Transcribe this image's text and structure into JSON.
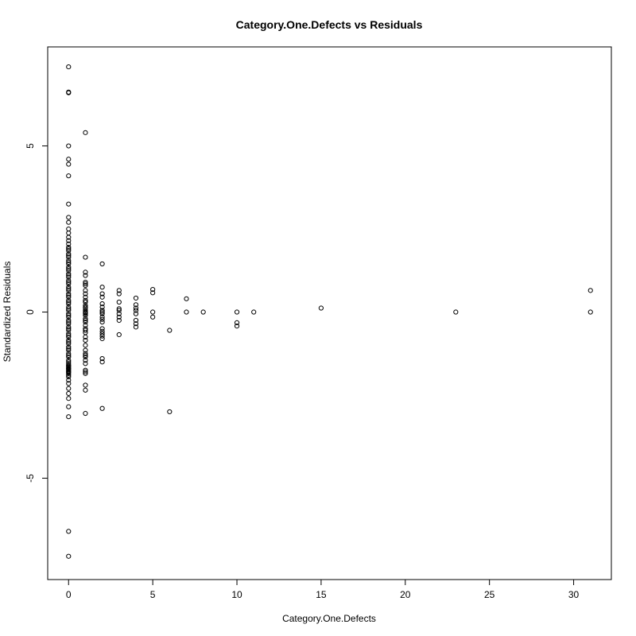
{
  "chart_data": {
    "type": "scatter",
    "title": "Category.One.Defects vs Residuals",
    "xlabel": "Category.One.Defects",
    "ylabel": "Standardized Residuals",
    "xlim": [
      -1.24,
      32.24
    ],
    "ylim": [
      -8.05,
      7.98
    ],
    "xticks": [
      0,
      5,
      10,
      15,
      20,
      25,
      30
    ],
    "yticks": [
      -5,
      0,
      5
    ],
    "grid": false,
    "series": [
      {
        "name": "residuals",
        "x": [
          0,
          0,
          0,
          0,
          0,
          0,
          0,
          0,
          0,
          0,
          0,
          0,
          0,
          0,
          0,
          0,
          0,
          0,
          0,
          0,
          0,
          0,
          0,
          0,
          0,
          0,
          0,
          0,
          0,
          0,
          0,
          0,
          0,
          0,
          0,
          0,
          0,
          0,
          0,
          0,
          0,
          0,
          0,
          0,
          0,
          0,
          0,
          0,
          0,
          0,
          0,
          0,
          0,
          0,
          0,
          0,
          0,
          0,
          0,
          0,
          0,
          0,
          0,
          0,
          0,
          0,
          0,
          0,
          0,
          0,
          0,
          0,
          0,
          0,
          0,
          0,
          0,
          0,
          0,
          0,
          0,
          0,
          0,
          0,
          0,
          0,
          0,
          0,
          0,
          0,
          0,
          1,
          1,
          1,
          1,
          1,
          1,
          1,
          1,
          1,
          1,
          1,
          1,
          1,
          1,
          1,
          1,
          1,
          1,
          1,
          1,
          1,
          1,
          1,
          1,
          1,
          1,
          1,
          1,
          1,
          1,
          1,
          1,
          1,
          1,
          1,
          1,
          1,
          1,
          1,
          1,
          1,
          1,
          2,
          2,
          2,
          2,
          2,
          2,
          2,
          2,
          2,
          2,
          2,
          2,
          2,
          2,
          2,
          2,
          2,
          2,
          2,
          2,
          3,
          3,
          3,
          3,
          3,
          3,
          3,
          3,
          3,
          4,
          4,
          4,
          4,
          4,
          4,
          4,
          4,
          5,
          5,
          5,
          5,
          6,
          6,
          7,
          7,
          8,
          10,
          10,
          10,
          11,
          15,
          23,
          31,
          31
        ],
        "y": [
          7.38,
          6.6,
          6.62,
          5.0,
          4.6,
          4.45,
          4.1,
          3.25,
          2.85,
          2.7,
          2.5,
          2.38,
          2.25,
          2.15,
          2.05,
          1.95,
          1.85,
          1.75,
          1.65,
          1.55,
          1.45,
          1.35,
          1.25,
          1.15,
          1.05,
          0.95,
          0.85,
          0.75,
          0.65,
          0.55,
          0.45,
          0.35,
          0.25,
          0.15,
          0.05,
          -0.05,
          -0.15,
          -0.25,
          -0.35,
          -0.45,
          -0.55,
          -0.65,
          -0.75,
          -0.85,
          -0.95,
          -1.05,
          -1.15,
          -1.25,
          -1.35,
          -1.45,
          -1.55,
          -1.65,
          -1.7,
          -1.75,
          -1.8,
          -1.85,
          -1.95,
          -2.05,
          -2.15,
          -2.3,
          -2.45,
          -2.6,
          -2.85,
          -3.15,
          -6.6,
          -7.35,
          1.9,
          1.7,
          1.5,
          1.3,
          1.1,
          0.9,
          0.7,
          0.5,
          0.3,
          0.1,
          -0.1,
          -0.3,
          -0.5,
          -0.7,
          -0.9,
          -1.1,
          -1.3,
          -1.5,
          -1.6,
          -1.62,
          -1.68,
          -1.72,
          -1.78,
          -1.82,
          -1.9,
          5.4,
          1.65,
          1.2,
          1.1,
          0.9,
          0.8,
          0.65,
          0.55,
          0.45,
          0.3,
          0.2,
          0.12,
          0.05,
          -0.02,
          -0.1,
          -0.2,
          -0.3,
          -0.4,
          -0.5,
          -0.62,
          -0.75,
          -0.85,
          -1.0,
          -1.15,
          -1.25,
          -1.35,
          -1.45,
          -1.55,
          -1.75,
          -1.85,
          -2.2,
          -2.35,
          -3.05,
          0.85,
          0.35,
          -0.55,
          -1.3,
          -1.8,
          0.0,
          0.15,
          -0.05,
          -0.25,
          1.45,
          0.75,
          0.55,
          0.45,
          0.15,
          0.05,
          0.0,
          -0.05,
          -0.15,
          -0.22,
          -0.3,
          -0.5,
          -0.58,
          -0.65,
          -0.72,
          -0.8,
          -1.4,
          -1.5,
          -2.9,
          0.25,
          0.65,
          0.55,
          0.3,
          0.05,
          -0.05,
          -0.15,
          -0.25,
          -0.68,
          0.1,
          0.42,
          0.22,
          0.12,
          0.05,
          -0.05,
          -0.25,
          -0.35,
          -0.45,
          0.68,
          0.58,
          0.0,
          -0.15,
          -0.55,
          -3.0,
          0.4,
          0.0,
          0.0,
          0.0,
          -0.32,
          -0.42,
          0.0,
          0.12,
          0.0,
          0.65,
          0.0
        ]
      }
    ]
  }
}
